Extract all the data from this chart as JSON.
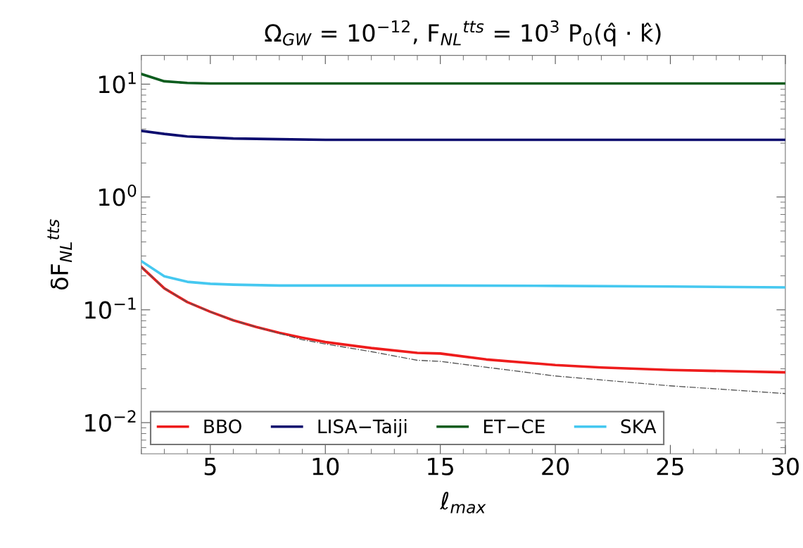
{
  "chart_data": {
    "type": "line",
    "title": "Ω$_{GW}$ = 10$^{−12}$, F$_{NL}$$^{tts}$ = 10$^{3}$ P$_{0}$(q̂ · k̂)",
    "xlabel": "ℓ$_{max}$",
    "ylabel": "δF$_{NL}$$^{tts}$",
    "log": "y",
    "xlim": [
      2,
      30
    ],
    "ylim": [
      0.0053,
      18
    ],
    "xticks": [
      5,
      10,
      15,
      20,
      25,
      30
    ],
    "yticks": [
      {
        "value": 0.01,
        "label": "10$^{−2}$"
      },
      {
        "value": 0.1,
        "label": "10$^{−1}$"
      },
      {
        "value": 1,
        "label": "10$^{0}$"
      },
      {
        "value": 10,
        "label": "10$^{1}$"
      }
    ],
    "grid": false,
    "legend": "bottom left",
    "line_style": "solid",
    "marker": "none",
    "series": [
      {
        "name": "BBO",
        "color": "#ee1c1c",
        "x": [
          2,
          3,
          4,
          5,
          6,
          7,
          8,
          9,
          10,
          12,
          14,
          15,
          17,
          20,
          22,
          25,
          30
        ],
        "values": [
          0.24,
          0.155,
          0.117,
          0.096,
          0.0807,
          0.0704,
          0.0625,
          0.0566,
          0.0518,
          0.0458,
          0.0415,
          0.041,
          0.0363,
          0.0324,
          0.0308,
          0.0293,
          0.0279
        ]
      },
      {
        "name": "LISA−Taiji",
        "color": "#0a0a6e",
        "x": [
          2,
          3,
          4,
          5,
          6,
          8,
          10,
          15,
          20,
          25,
          30
        ],
        "values": [
          3.86,
          3.62,
          3.44,
          3.37,
          3.3,
          3.25,
          3.21,
          3.21,
          3.21,
          3.21,
          3.21
        ]
      },
      {
        "name": "ET−CE",
        "color": "#0d5c1e",
        "x": [
          2,
          3,
          4,
          5,
          10,
          15,
          20,
          25,
          30
        ],
        "values": [
          12.3,
          10.6,
          10.25,
          10.15,
          10.15,
          10.15,
          10.15,
          10.15,
          10.15
        ]
      },
      {
        "name": "SKA",
        "color": "#45c8f0",
        "x": [
          2,
          3,
          4,
          5,
          6,
          8,
          10,
          15,
          20,
          25,
          30
        ],
        "values": [
          0.27,
          0.198,
          0.177,
          0.17,
          0.167,
          0.164,
          0.164,
          0.164,
          0.163,
          0.161,
          0.158
        ]
      },
      {
        "color": "#555555",
        "line_style": "dashdot",
        "x": [
          2,
          3,
          4,
          5,
          6,
          7,
          9,
          10,
          12,
          14,
          15,
          20,
          25,
          30
        ],
        "values": [
          0.24,
          0.155,
          0.117,
          0.096,
          0.0807,
          0.0704,
          0.0543,
          0.0498,
          0.0426,
          0.0357,
          0.0349,
          0.0259,
          0.0212,
          0.0181
        ]
      }
    ]
  }
}
